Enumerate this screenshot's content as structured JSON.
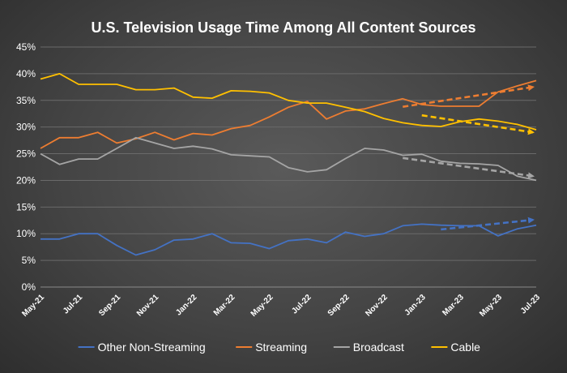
{
  "chart_data": {
    "type": "line",
    "title": "U.S. Television Usage Time Among All Content Sources",
    "xlabel": "",
    "ylabel": "",
    "ylim": [
      0,
      45
    ],
    "y_ticks": [
      "0%",
      "5%",
      "10%",
      "15%",
      "20%",
      "25%",
      "30%",
      "35%",
      "40%",
      "45%"
    ],
    "y_tick_values": [
      0,
      5,
      10,
      15,
      20,
      25,
      30,
      35,
      40,
      45
    ],
    "x": [
      "May-21",
      "Jun-21",
      "Jul-21",
      "Aug-21",
      "Sep-21",
      "Oct-21",
      "Nov-21",
      "Dec-21",
      "Jan-22",
      "Feb-22",
      "Mar-22",
      "Apr-22",
      "May-22",
      "Jun-22",
      "Jul-22",
      "Aug-22",
      "Sep-22",
      "Oct-22",
      "Nov-22",
      "Dec-22",
      "Jan-23",
      "Feb-23",
      "Mar-23",
      "Apr-23",
      "May-23",
      "Jun-23",
      "Jul-23"
    ],
    "x_tick_labels": [
      "May-21",
      "Jul-21",
      "Sep-21",
      "Nov-21",
      "Jan-22",
      "Mar-22",
      "May-22",
      "Jul-22",
      "Sep-22",
      "Nov-22",
      "Jan-23",
      "Mar-23",
      "May-23",
      "Jul-23"
    ],
    "grid": true,
    "legend": "bottom",
    "series": [
      {
        "name": "Other Non-Streaming",
        "color": "#4472c4",
        "values": [
          9.0,
          9.0,
          10.0,
          10.0,
          7.8,
          6.0,
          7.0,
          8.8,
          9.0,
          10.0,
          8.3,
          8.2,
          7.2,
          8.7,
          9.0,
          8.3,
          10.3,
          9.5,
          10.0,
          11.5,
          11.8,
          11.6,
          11.5,
          11.5,
          9.6,
          10.9,
          11.6
        ]
      },
      {
        "name": "Streaming",
        "color": "#ed7d31",
        "values": [
          26.0,
          28.0,
          28.0,
          29.0,
          27.0,
          27.8,
          29.0,
          27.6,
          28.8,
          28.5,
          29.7,
          30.3,
          31.9,
          33.7,
          34.8,
          31.5,
          33.0,
          33.4,
          34.4,
          35.3,
          34.2,
          33.9,
          33.9,
          33.9,
          36.6,
          37.7,
          38.7
        ]
      },
      {
        "name": "Broadcast",
        "color": "#a5a5a5",
        "values": [
          25.0,
          23.0,
          24.0,
          24.0,
          26.0,
          28.0,
          27.0,
          26.0,
          26.4,
          25.9,
          24.8,
          24.6,
          24.4,
          22.4,
          21.6,
          22.0,
          24.1,
          26.0,
          25.7,
          24.7,
          24.9,
          23.6,
          23.2,
          23.1,
          22.8,
          20.8,
          20.0
        ]
      },
      {
        "name": "Cable",
        "color": "#ffc000",
        "values": [
          39.0,
          40.0,
          38.0,
          38.0,
          38.0,
          37.0,
          37.0,
          37.3,
          35.6,
          35.4,
          36.8,
          36.7,
          36.4,
          35.0,
          34.5,
          34.5,
          33.7,
          32.9,
          31.6,
          30.8,
          30.3,
          30.1,
          31.0,
          31.5,
          31.1,
          30.5,
          29.5
        ]
      }
    ],
    "trend_arrows": [
      {
        "series": "Streaming",
        "color": "#ed7d31",
        "x_start": "Dec-22",
        "x_end": "Jul-23",
        "y_start": 33.8,
        "y_end": 37.5
      },
      {
        "series": "Cable",
        "color": "#ffc000",
        "x_start": "Jan-23",
        "x_end": "Jul-23",
        "y_start": 32.2,
        "y_end": 29.0
      },
      {
        "series": "Broadcast",
        "color": "#a5a5a5",
        "x_start": "Dec-22",
        "x_end": "Jul-23",
        "y_start": 24.2,
        "y_end": 20.8
      },
      {
        "series": "Other Non-Streaming",
        "color": "#4472c4",
        "x_start": "Feb-23",
        "x_end": "Jul-23",
        "y_start": 10.8,
        "y_end": 12.6
      }
    ]
  }
}
